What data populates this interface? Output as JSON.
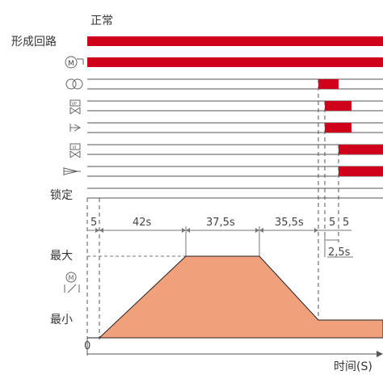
{
  "header": {
    "state_label": "正常"
  },
  "rows": [
    {
      "label": "形成回路",
      "icon": ""
    },
    {
      "label": "",
      "icon": "motor-pump-icon"
    },
    {
      "label": "",
      "icon": "rings-icon"
    },
    {
      "label": "",
      "icon": "valve-vp-icon"
    },
    {
      "label": "",
      "icon": "nozzle-icon"
    },
    {
      "label": "",
      "icon": "valve-vi-icon"
    },
    {
      "label": "",
      "icon": "injector-icon"
    },
    {
      "label": "锁定",
      "icon": ""
    }
  ],
  "icon_text": {
    "vp": "VP",
    "vi": "VI",
    "m": "M"
  },
  "durations": {
    "d1": "5",
    "d2": "42s",
    "d3": "37,5s",
    "d4": "35,5s",
    "d5": "5",
    "d6": "5",
    "d7": "2,5s"
  },
  "y_axis": {
    "max_label": "最大",
    "min_label": "最小",
    "icon": "motor-speed-icon"
  },
  "x_axis": {
    "origin": "0",
    "label": "时间(S)"
  },
  "colors": {
    "bar": "#d0021b",
    "area": "#f0a07a",
    "area_stroke": "#222222"
  }
}
